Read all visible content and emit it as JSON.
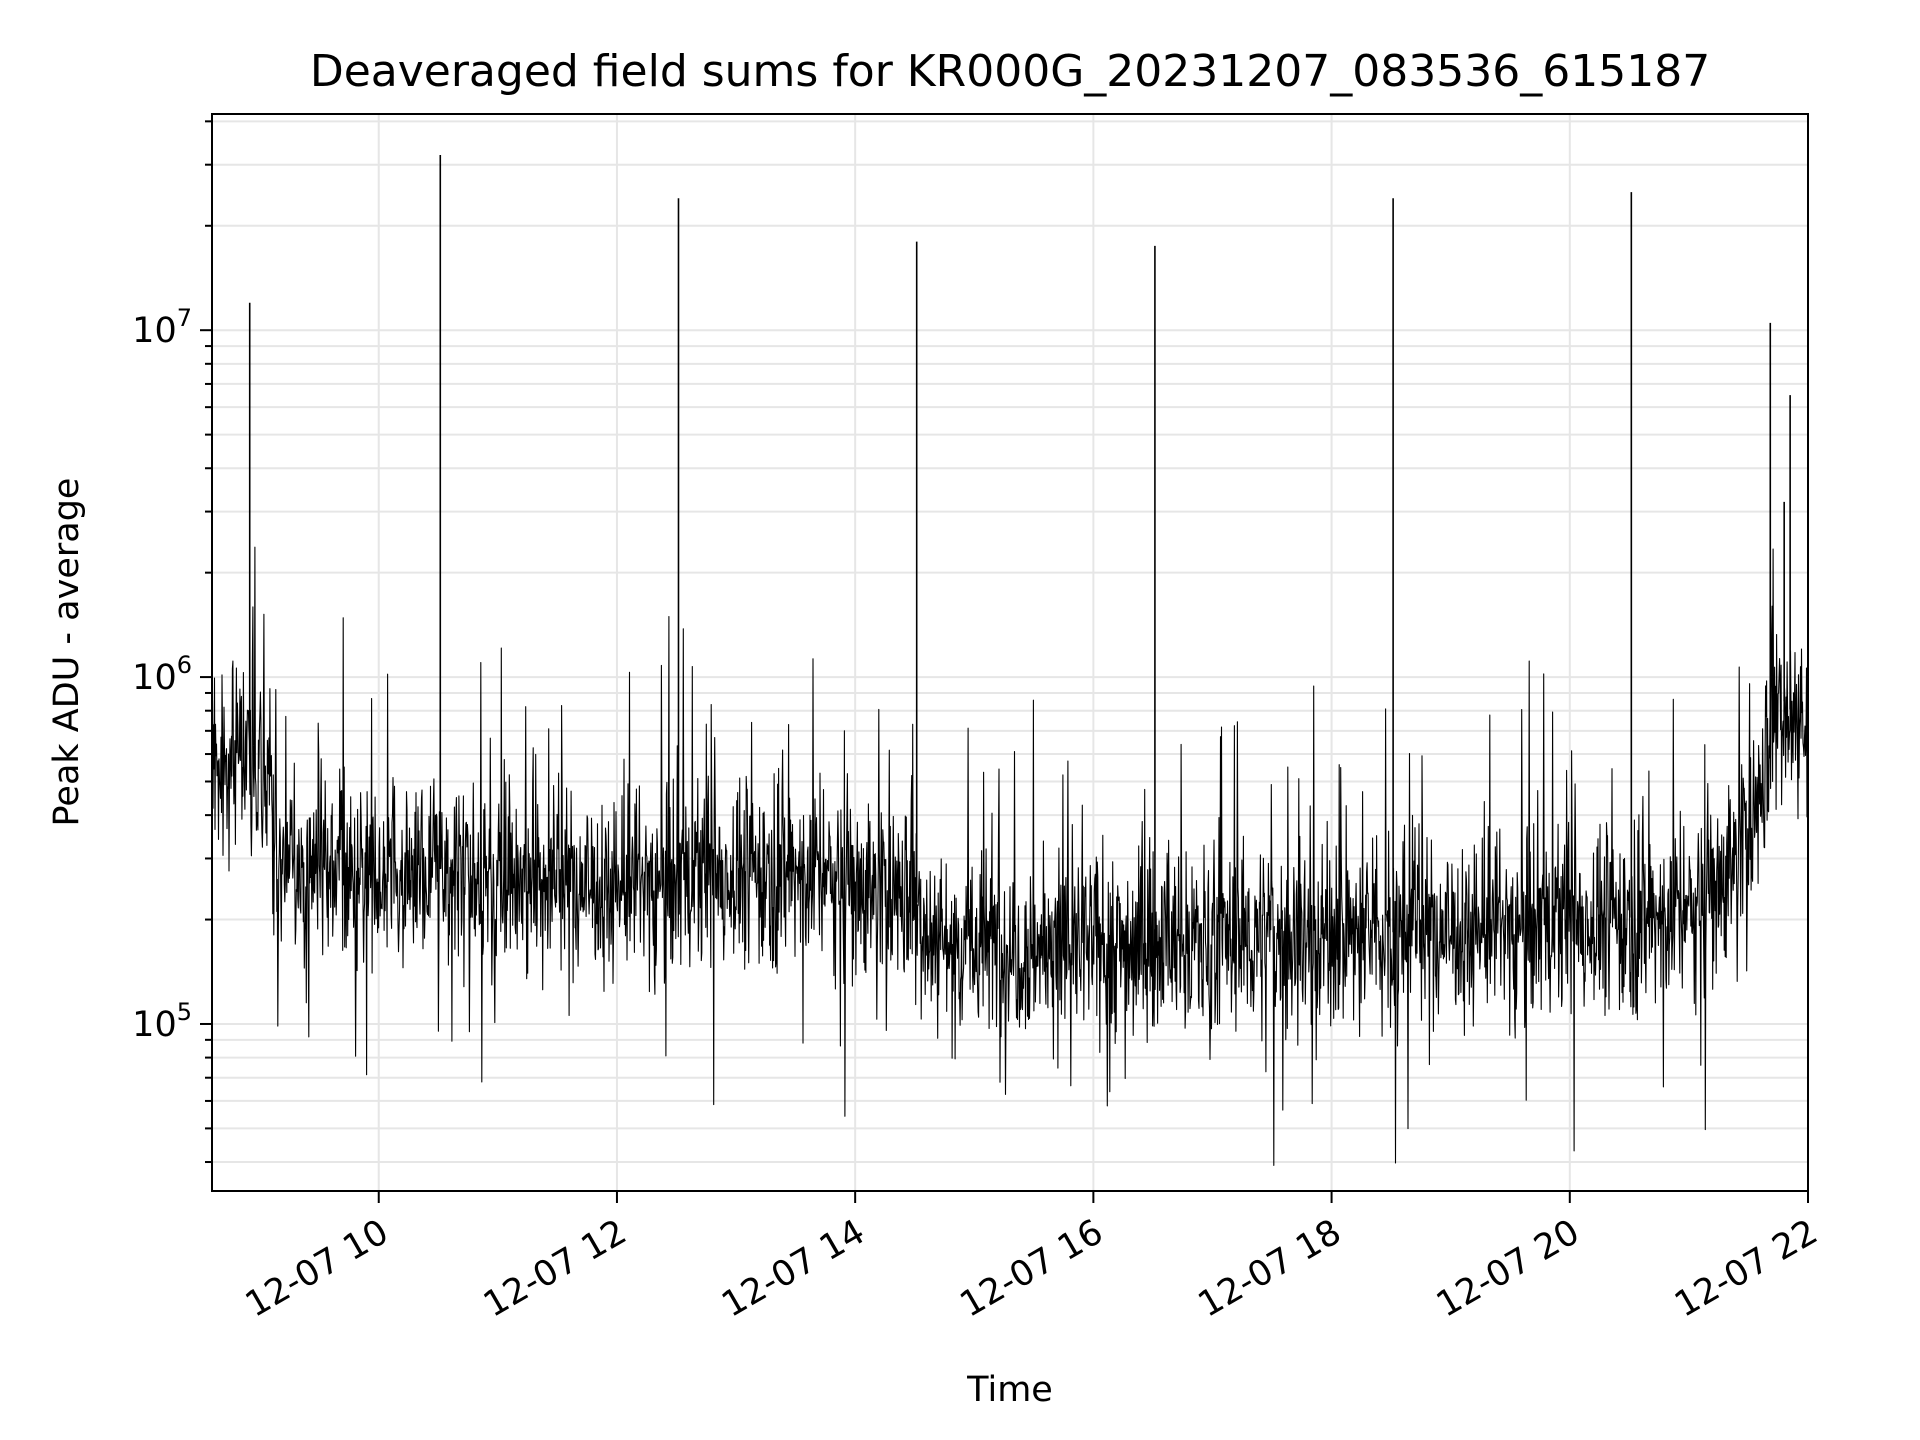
{
  "chart_data": {
    "type": "line",
    "title": "Deaveraged field sums for KR000G_20231207_083536_615187",
    "xlabel": "Time",
    "ylabel": "Peak ADU - average",
    "yscale": "log",
    "xlim": [
      "2023-12-07 08:36",
      "2023-12-07 22:00"
    ],
    "ylim": [
      33000,
      42000000
    ],
    "grid": true,
    "line_color": "#000000",
    "grid_color": "#e6e6e6",
    "x_ticks": [
      {
        "value": "2023-12-07 10:00",
        "label": "12-07 10"
      },
      {
        "value": "2023-12-07 12:00",
        "label": "12-07 12"
      },
      {
        "value": "2023-12-07 14:00",
        "label": "12-07 14"
      },
      {
        "value": "2023-12-07 16:00",
        "label": "12-07 16"
      },
      {
        "value": "2023-12-07 18:00",
        "label": "12-07 18"
      },
      {
        "value": "2023-12-07 20:00",
        "label": "12-07 20"
      },
      {
        "value": "2023-12-07 22:00",
        "label": "12-07 22"
      }
    ],
    "y_ticks": [
      {
        "value": 100000,
        "base": "10",
        "exp": "5"
      },
      {
        "value": 1000000,
        "base": "10",
        "exp": "6"
      },
      {
        "value": 10000000,
        "base": "10",
        "exp": "7"
      }
    ],
    "series": [
      {
        "baseline": [
          [
            "2023-12-07 08:36",
            550000
          ],
          [
            "2023-12-07 08:55",
            600000
          ],
          [
            "2023-12-07 09:05",
            480000
          ],
          [
            "2023-12-07 09:10",
            270000
          ],
          [
            "2023-12-07 09:45",
            270000
          ],
          [
            "2023-12-07 10:30",
            280000
          ],
          [
            "2023-12-07 12:00",
            250000
          ],
          [
            "2023-12-07 13:30",
            280000
          ],
          [
            "2023-12-07 14:30",
            230000
          ],
          [
            "2023-12-07 14:40",
            175000
          ],
          [
            "2023-12-07 15:30",
            165000
          ],
          [
            "2023-12-07 16:30",
            170000
          ],
          [
            "2023-12-07 18:00",
            180000
          ],
          [
            "2023-12-07 20:00",
            195000
          ],
          [
            "2023-12-07 21:00",
            210000
          ],
          [
            "2023-12-07 21:20",
            280000
          ],
          [
            "2023-12-07 21:35",
            420000
          ],
          [
            "2023-12-07 21:45",
            900000
          ],
          [
            "2023-12-07 21:55",
            750000
          ],
          [
            "2023-12-07 22:00",
            620000
          ]
        ],
        "spikes": [
          [
            "2023-12-07 08:55",
            12000000
          ],
          [
            "2023-12-07 10:31",
            32000000
          ],
          [
            "2023-12-07 12:31",
            24000000
          ],
          [
            "2023-12-07 14:31",
            18000000
          ],
          [
            "2023-12-07 16:31",
            17500000
          ],
          [
            "2023-12-07 18:31",
            24000000
          ],
          [
            "2023-12-07 20:31",
            25000000
          ],
          [
            "2023-12-07 21:41",
            10500000
          ],
          [
            "2023-12-07 21:51",
            6500000
          ],
          [
            "2023-12-07 21:48",
            3200000
          ]
        ]
      }
    ]
  }
}
